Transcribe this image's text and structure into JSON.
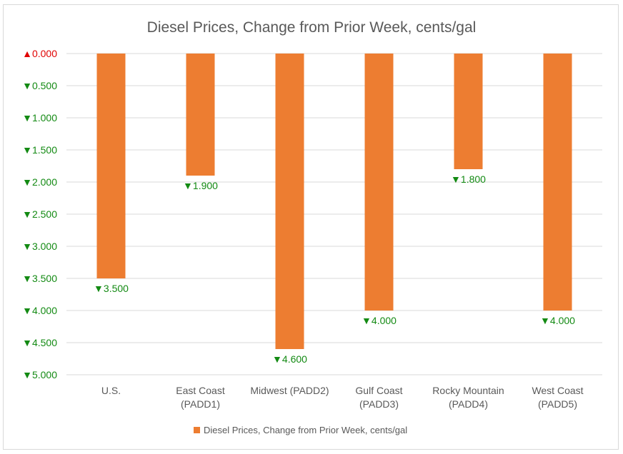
{
  "chart_data": {
    "type": "bar",
    "title": "Diesel Prices, Change from Prior Week, cents/gal",
    "categories": [
      [
        "U.S."
      ],
      [
        "East Coast",
        "(PADD1)"
      ],
      [
        "Midwest (PADD2)"
      ],
      [
        "Gulf Coast",
        "(PADD3)"
      ],
      [
        "Rocky Mountain",
        "(PADD4)"
      ],
      [
        "West Coast",
        "(PADD5)"
      ]
    ],
    "series": [
      {
        "name": "Diesel Prices, Change from Prior Week, cents/gal",
        "values": [
          -3.5,
          -1.9,
          -4.6,
          -4.0,
          -1.8,
          -4.0
        ],
        "data_labels": [
          "▼3.500",
          "▼1.900",
          "▼4.600",
          "▼4.000",
          "▼1.800",
          "▼4.000"
        ]
      }
    ],
    "yticks": [
      0,
      -0.5,
      -1.0,
      -1.5,
      -2.0,
      -2.5,
      -3.0,
      -3.5,
      -4.0,
      -4.5,
      -5.0
    ],
    "ytick_labels": [
      "▲0.000",
      "▼0.500",
      "▼1.000",
      "▼1.500",
      "▼2.000",
      "▼2.500",
      "▼3.000",
      "▼3.500",
      "▼4.000",
      "▼4.500",
      "▼5.000"
    ],
    "ylim": [
      -5.0,
      0
    ],
    "xlabel": "",
    "ylabel": "",
    "grid": true,
    "legend": "bottom",
    "colors": {
      "bar": "#ed7d31",
      "up": "#e00000",
      "down": "#138a13",
      "grid": "#d9d9d9",
      "text": "#595959"
    }
  }
}
